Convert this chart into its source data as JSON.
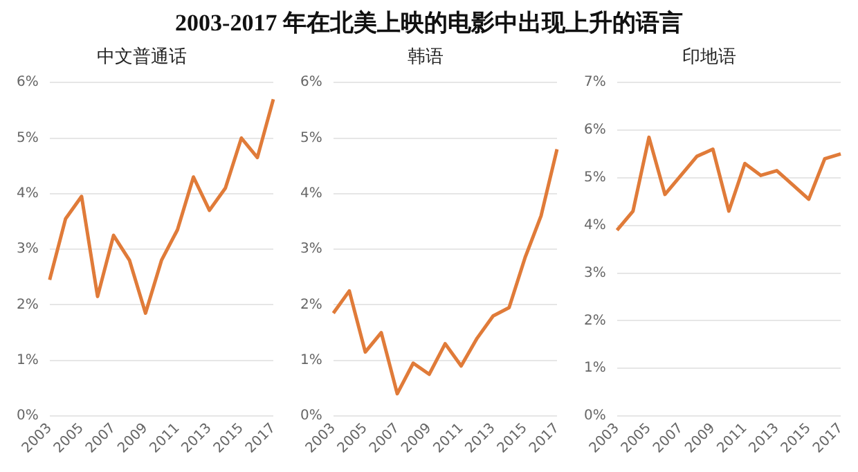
{
  "chart_data": [
    {
      "type": "line",
      "title": "2003-2017 年在北美上映的电影中出现上升的语言",
      "subtitle": "中文普通话",
      "categories": [
        "2003",
        null,
        "2005",
        null,
        "2007",
        null,
        "2009",
        null,
        "2011",
        null,
        "2013",
        null,
        "2015",
        null,
        "2017"
      ],
      "series": [
        {
          "color": "#e07b39",
          "values": [
            2.45,
            3.55,
            3.95,
            2.15,
            3.25,
            2.8,
            1.85,
            2.8,
            3.35,
            4.3,
            3.7,
            4.1,
            5.0,
            4.65,
            5.7
          ]
        }
      ],
      "ylim": [
        0,
        6
      ],
      "yticks": [
        {
          "value": 0,
          "label": "0%"
        },
        {
          "value": 1,
          "label": "1%"
        },
        {
          "value": 2,
          "label": "2%"
        },
        {
          "value": 3,
          "label": "3%"
        },
        {
          "value": 4,
          "label": "4%"
        },
        {
          "value": 5,
          "label": "5%"
        },
        {
          "value": 6,
          "label": "6%"
        }
      ],
      "grid": "y",
      "legend": false,
      "marker": "none"
    },
    {
      "type": "line",
      "subtitle": "韩语",
      "categories": [
        "2003",
        null,
        "2005",
        null,
        "2007",
        null,
        "2009",
        null,
        "2011",
        null,
        "2013",
        null,
        "2015",
        null,
        "2017"
      ],
      "series": [
        {
          "color": "#e07b39",
          "values": [
            1.85,
            2.25,
            1.15,
            1.5,
            0.4,
            0.95,
            0.75,
            1.3,
            0.9,
            1.4,
            1.8,
            1.95,
            2.85,
            3.6,
            4.8
          ]
        }
      ],
      "ylim": [
        0,
        6
      ],
      "yticks": [
        {
          "value": 0,
          "label": "0%"
        },
        {
          "value": 1,
          "label": "1%"
        },
        {
          "value": 2,
          "label": "2%"
        },
        {
          "value": 3,
          "label": "3%"
        },
        {
          "value": 4,
          "label": "4%"
        },
        {
          "value": 5,
          "label": "5%"
        },
        {
          "value": 6,
          "label": "6%"
        }
      ],
      "grid": "y",
      "legend": false,
      "marker": "none"
    },
    {
      "type": "line",
      "subtitle": "印地语",
      "categories": [
        "2003",
        null,
        "2005",
        null,
        "2007",
        null,
        "2009",
        null,
        "2011",
        null,
        "2013",
        null,
        "2015",
        null,
        "2017"
      ],
      "series": [
        {
          "color": "#e07b39",
          "values": [
            3.9,
            4.3,
            5.85,
            4.65,
            5.05,
            5.45,
            5.6,
            4.3,
            5.3,
            5.05,
            5.15,
            4.85,
            4.55,
            5.4,
            5.5
          ]
        }
      ],
      "ylim": [
        0,
        7
      ],
      "yticks": [
        {
          "value": 0,
          "label": "0%"
        },
        {
          "value": 1,
          "label": "1%"
        },
        {
          "value": 2,
          "label": "2%"
        },
        {
          "value": 3,
          "label": "3%"
        },
        {
          "value": 4,
          "label": "4%"
        },
        {
          "value": 5,
          "label": "5%"
        },
        {
          "value": 6,
          "label": "6%"
        },
        {
          "value": 7,
          "label": "7%"
        }
      ],
      "grid": "y",
      "legend": false,
      "marker": "none"
    }
  ]
}
